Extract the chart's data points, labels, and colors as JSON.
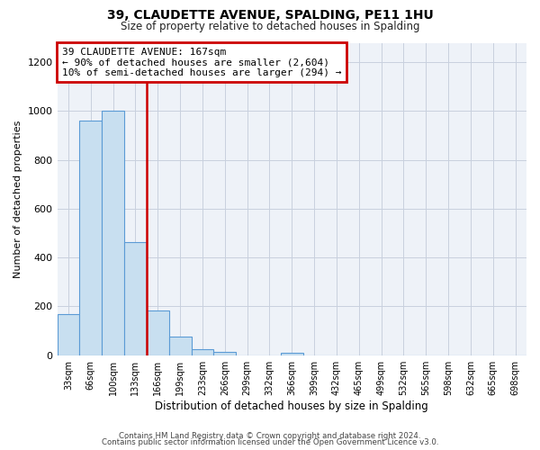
{
  "title": "39, CLAUDETTE AVENUE, SPALDING, PE11 1HU",
  "subtitle": "Size of property relative to detached houses in Spalding",
  "xlabel": "Distribution of detached houses by size in Spalding",
  "ylabel": "Number of detached properties",
  "bin_labels": [
    "33sqm",
    "66sqm",
    "100sqm",
    "133sqm",
    "166sqm",
    "199sqm",
    "233sqm",
    "266sqm",
    "299sqm",
    "332sqm",
    "366sqm",
    "399sqm",
    "432sqm",
    "465sqm",
    "499sqm",
    "532sqm",
    "565sqm",
    "598sqm",
    "632sqm",
    "665sqm",
    "698sqm"
  ],
  "bar_values": [
    170,
    960,
    1000,
    465,
    185,
    75,
    25,
    15,
    0,
    0,
    10,
    0,
    0,
    0,
    0,
    0,
    0,
    0,
    0,
    0,
    0
  ],
  "bar_color": "#c8dff0",
  "bar_edgecolor": "#5b9bd5",
  "red_line_x": 3.5,
  "annotation_title": "39 CLAUDETTE AVENUE: 167sqm",
  "annotation_line1": "← 90% of detached houses are smaller (2,604)",
  "annotation_line2": "10% of semi-detached houses are larger (294) →",
  "annotation_box_color": "#ffffff",
  "annotation_box_edgecolor": "#cc0000",
  "ylim": [
    0,
    1280
  ],
  "yticks": [
    0,
    200,
    400,
    600,
    800,
    1000,
    1200
  ],
  "footer_line1": "Contains HM Land Registry data © Crown copyright and database right 2024.",
  "footer_line2": "Contains public sector information licensed under the Open Government Licence v3.0.",
  "bg_color": "#ffffff",
  "plot_bg_color": "#eef2f8",
  "grid_color": "#c8d0de"
}
